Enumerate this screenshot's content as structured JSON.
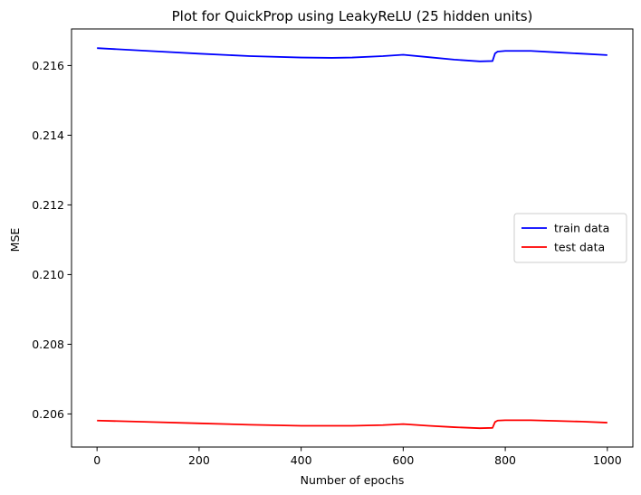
{
  "chart_data": {
    "type": "line",
    "title": "Plot for QuickProp using LeakyReLU (25 hidden units)",
    "xlabel": "Number of epochs",
    "ylabel": "MSE",
    "xlim": [
      -50,
      1050
    ],
    "ylim": [
      0.20505,
      0.21705
    ],
    "xticks": [
      0,
      200,
      400,
      600,
      800,
      1000
    ],
    "xtick_labels": [
      "0",
      "200",
      "400",
      "600",
      "800",
      "1000"
    ],
    "yticks": [
      0.206,
      0.208,
      0.21,
      0.212,
      0.214,
      0.216
    ],
    "ytick_labels": [
      "0.206",
      "0.208",
      "0.210",
      "0.212",
      "0.214",
      "0.216"
    ],
    "grid": false,
    "legend_position": "center-right",
    "series": [
      {
        "name": "train data",
        "color": "#0000ff",
        "x": [
          0,
          100,
          200,
          300,
          400,
          460,
          500,
          560,
          600,
          650,
          700,
          750,
          775,
          780,
          785,
          800,
          850,
          900,
          950,
          1000
        ],
        "y": [
          0.2165,
          0.21642,
          0.21634,
          0.21627,
          0.21623,
          0.21622,
          0.21623,
          0.21627,
          0.21631,
          0.21624,
          0.21617,
          0.21612,
          0.21613,
          0.21635,
          0.2164,
          0.21642,
          0.21642,
          0.21638,
          0.21634,
          0.2163
        ]
      },
      {
        "name": "test data",
        "color": "#ff0000",
        "x": [
          0,
          100,
          200,
          300,
          400,
          460,
          500,
          560,
          600,
          650,
          700,
          750,
          775,
          780,
          785,
          800,
          850,
          900,
          950,
          1000
        ],
        "y": [
          0.20581,
          0.20577,
          0.20573,
          0.20569,
          0.20566,
          0.20566,
          0.20566,
          0.20568,
          0.20571,
          0.20566,
          0.20562,
          0.20559,
          0.2056,
          0.20577,
          0.20581,
          0.20582,
          0.20582,
          0.2058,
          0.20578,
          0.20575
        ]
      }
    ]
  }
}
